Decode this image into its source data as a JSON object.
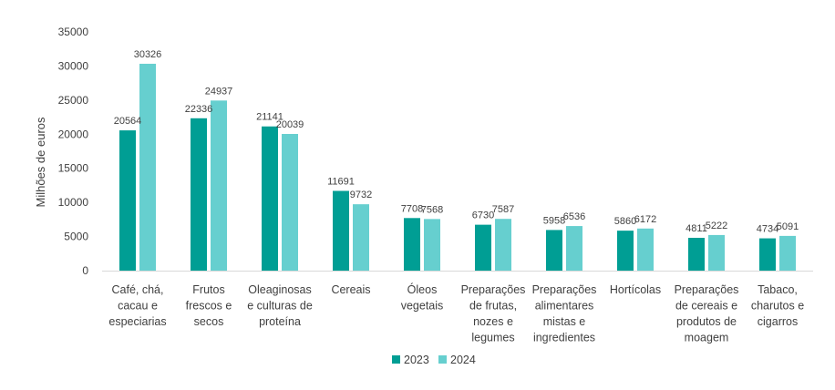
{
  "chart_data": {
    "type": "bar",
    "ylabel": "Milhões de euros",
    "ylim": [
      0,
      35000
    ],
    "yticks": [
      0,
      5000,
      10000,
      15000,
      20000,
      25000,
      30000,
      35000
    ],
    "grid": false,
    "legend_position": "bottom",
    "categories": [
      [
        "Café, chá,",
        "cacau e",
        "especiarias"
      ],
      [
        "Frutos",
        "frescos e",
        "secos"
      ],
      [
        "Oleaginosas",
        "e culturas de",
        "proteína"
      ],
      [
        "Cereais"
      ],
      [
        "Óleos",
        "vegetais"
      ],
      [
        "Preparações",
        "de frutas,",
        "nozes e",
        "legumes"
      ],
      [
        "Preparações",
        "alimentares",
        "mistas e",
        "ingredientes"
      ],
      [
        "Hortícolas"
      ],
      [
        "Preparações",
        "de cereais e",
        "produtos de",
        "moagem"
      ],
      [
        "Tabaco,",
        "charutos e",
        "cigarros"
      ]
    ],
    "series": [
      {
        "name": "2023",
        "color": "#009e94",
        "values": [
          20564,
          22336,
          21141,
          11691,
          7708,
          6730,
          5958,
          5860,
          4811,
          4734
        ]
      },
      {
        "name": "2024",
        "color": "#66cfcf",
        "values": [
          30326,
          24937,
          20039,
          9732,
          7568,
          7587,
          6536,
          6172,
          5222,
          5091
        ]
      }
    ]
  }
}
